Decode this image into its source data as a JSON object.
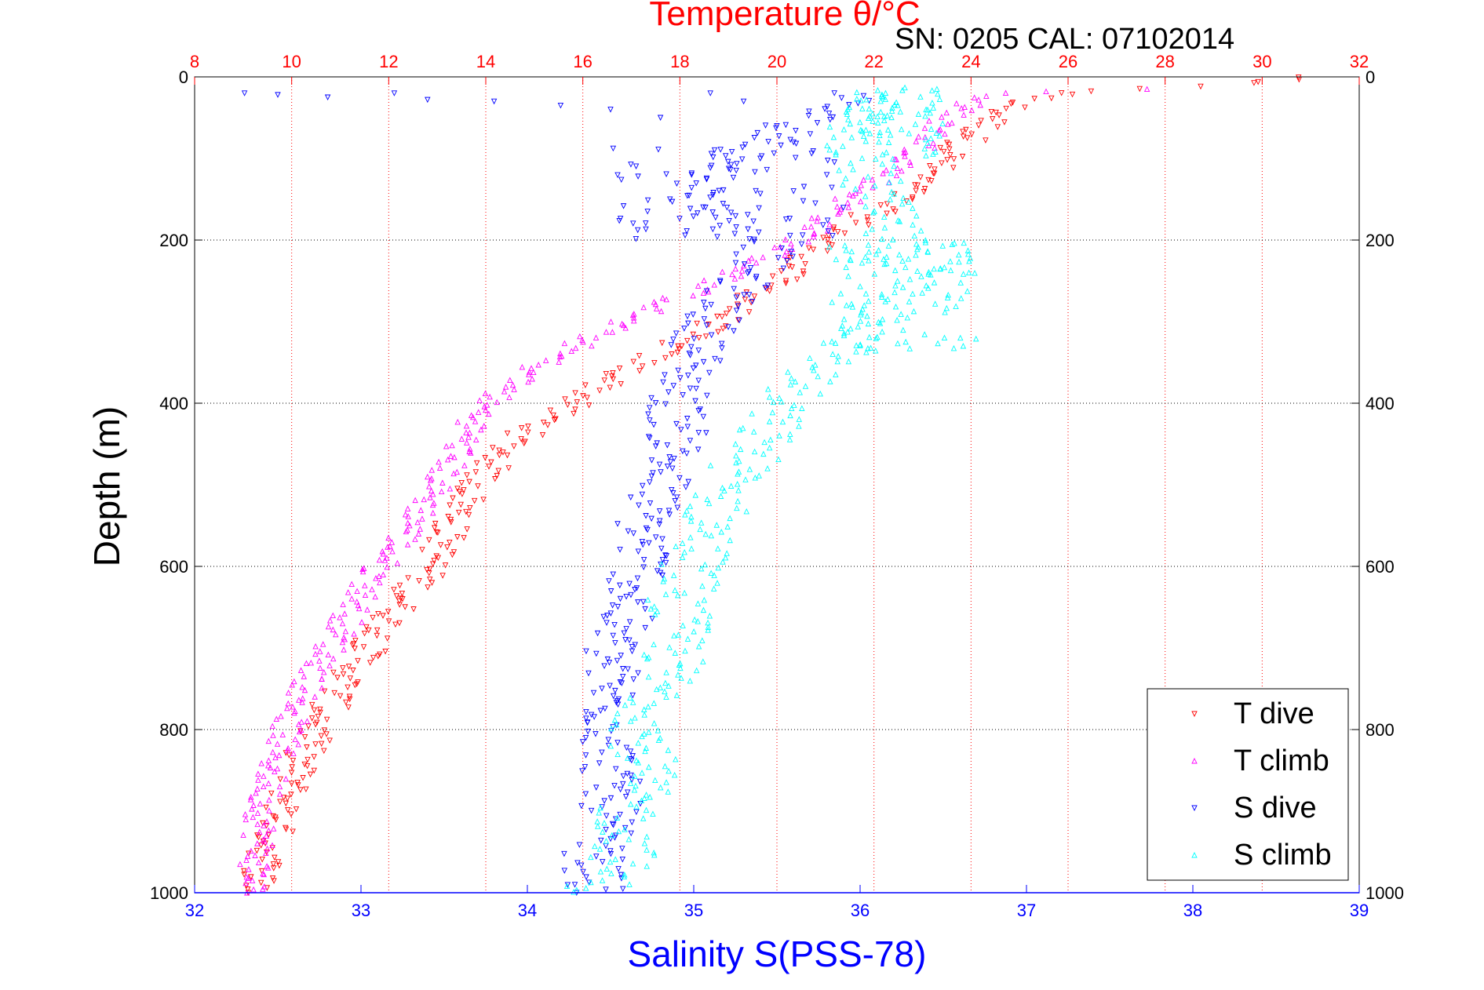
{
  "chart_data": {
    "type": "scatter",
    "title": "Temperature θ/°C",
    "annotation": "SN: 0205  CAL: 07102014",
    "xlabel": "Salinity S(PSS-78)",
    "ylabel": "Depth (m)",
    "top_axis": {
      "label": "Temperature θ/°C",
      "range": [
        8,
        32
      ],
      "ticks": [
        "8",
        "10",
        "12",
        "14",
        "16",
        "18",
        "20",
        "22",
        "24",
        "26",
        "28",
        "30",
        "32"
      ]
    },
    "bottom_axis": {
      "label": "Salinity S(PSS-78)",
      "range": [
        32,
        39
      ],
      "ticks": [
        "32",
        "33",
        "34",
        "35",
        "36",
        "37",
        "38",
        "39"
      ]
    },
    "y_axis": {
      "label": "Depth (m)",
      "range": [
        0,
        1000
      ],
      "reversed": true,
      "ticks": [
        "0",
        "200",
        "400",
        "600",
        "800",
        "1000"
      ]
    },
    "grid": true,
    "legend_position": "bottom-right",
    "colors": {
      "t_dive": "#ff0000",
      "t_climb": "#ff00ff",
      "s_dive": "#0000ff",
      "s_climb": "#00ffff"
    },
    "series": [
      {
        "name": "T dive",
        "axis": "temperature",
        "marker": "triangle-down",
        "color": "#ff0000",
        "profile": [
          [
            0,
            31.0
          ],
          [
            10,
            29.0
          ],
          [
            20,
            26.0
          ],
          [
            30,
            25.0
          ],
          [
            50,
            24.5
          ],
          [
            100,
            23.5
          ],
          [
            150,
            22.5
          ],
          [
            200,
            21.0
          ],
          [
            250,
            20.0
          ],
          [
            300,
            18.8
          ],
          [
            350,
            17.2
          ],
          [
            400,
            15.8
          ],
          [
            450,
            14.5
          ],
          [
            500,
            13.8
          ],
          [
            550,
            13.3
          ],
          [
            600,
            12.9
          ],
          [
            650,
            12.2
          ],
          [
            700,
            11.6
          ],
          [
            750,
            11.0
          ],
          [
            800,
            10.5
          ],
          [
            850,
            10.1
          ],
          [
            900,
            9.8
          ],
          [
            950,
            9.5
          ],
          [
            1000,
            9.3
          ]
        ],
        "spread": 0.4
      },
      {
        "name": "T climb",
        "axis": "temperature",
        "marker": "triangle-up",
        "color": "#ff00ff",
        "profile": [
          [
            15,
            27.5
          ],
          [
            20,
            24.5
          ],
          [
            30,
            24.0
          ],
          [
            50,
            23.5
          ],
          [
            100,
            22.8
          ],
          [
            150,
            21.5
          ],
          [
            200,
            20.5
          ],
          [
            250,
            18.8
          ],
          [
            300,
            16.8
          ],
          [
            350,
            15.2
          ],
          [
            400,
            14.0
          ],
          [
            450,
            13.5
          ],
          [
            500,
            13.0
          ],
          [
            550,
            12.5
          ],
          [
            600,
            11.8
          ],
          [
            650,
            11.3
          ],
          [
            700,
            10.8
          ],
          [
            750,
            10.3
          ],
          [
            800,
            9.9
          ],
          [
            850,
            9.6
          ],
          [
            900,
            9.4
          ],
          [
            950,
            9.3
          ],
          [
            1000,
            9.2
          ]
        ],
        "spread": 0.35
      },
      {
        "name": "S dive",
        "axis": "salinity",
        "marker": "triangle-down",
        "color": "#0000ff",
        "profile": [
          [
            20,
            36.0
          ],
          [
            100,
            35.2
          ],
          [
            150,
            35.0
          ],
          [
            200,
            35.5
          ],
          [
            250,
            35.3
          ],
          [
            300,
            35.1
          ],
          [
            350,
            35.0
          ],
          [
            400,
            34.9
          ],
          [
            450,
            34.9
          ],
          [
            500,
            34.8
          ],
          [
            550,
            34.7
          ],
          [
            600,
            34.7
          ],
          [
            650,
            34.6
          ],
          [
            700,
            34.5
          ],
          [
            750,
            34.5
          ],
          [
            800,
            34.5
          ],
          [
            850,
            34.5
          ],
          [
            900,
            34.5
          ],
          [
            950,
            34.4
          ],
          [
            1000,
            34.4
          ]
        ],
        "spread": 0.18,
        "surface": [
          [
            20,
            32.3
          ],
          [
            22,
            32.5
          ],
          [
            25,
            32.8
          ],
          [
            20,
            33.2
          ],
          [
            28,
            33.4
          ],
          [
            30,
            33.8
          ],
          [
            35,
            34.2
          ],
          [
            40,
            34.5
          ],
          [
            50,
            34.8
          ],
          [
            20,
            35.1
          ],
          [
            30,
            35.3
          ],
          [
            60,
            35.5
          ],
          [
            80,
            35.6
          ],
          [
            70,
            35.7
          ],
          [
            100,
            35.4
          ],
          [
            120,
            35.8
          ],
          [
            140,
            35.6
          ],
          [
            160,
            35.2
          ]
        ]
      },
      {
        "name": "S climb",
        "axis": "salinity",
        "marker": "triangle-up",
        "color": "#00ffff",
        "profile": [
          [
            20,
            36.2
          ],
          [
            50,
            36.0
          ],
          [
            100,
            36.0
          ],
          [
            150,
            36.1
          ],
          [
            200,
            36.2
          ],
          [
            250,
            36.3
          ],
          [
            300,
            36.1
          ],
          [
            350,
            35.8
          ],
          [
            400,
            35.5
          ],
          [
            450,
            35.4
          ],
          [
            500,
            35.2
          ],
          [
            550,
            35.1
          ],
          [
            600,
            35.0
          ],
          [
            650,
            34.9
          ],
          [
            700,
            34.9
          ],
          [
            750,
            34.8
          ],
          [
            800,
            34.7
          ],
          [
            850,
            34.7
          ],
          [
            900,
            34.6
          ],
          [
            950,
            34.6
          ],
          [
            1000,
            34.4
          ]
        ],
        "spread": 0.2
      }
    ]
  },
  "legend": {
    "items": [
      "T dive",
      "T climb",
      "S dive",
      "S climb"
    ]
  }
}
